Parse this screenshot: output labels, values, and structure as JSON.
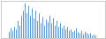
{
  "chart_data": {
    "type": "bar",
    "values": [
      5,
      8,
      6,
      9,
      7,
      14,
      10,
      18,
      22,
      28,
      20,
      26,
      18,
      24,
      16,
      22,
      14,
      20,
      12,
      17,
      10,
      15,
      13,
      18,
      12,
      16,
      10,
      14,
      9,
      12,
      8,
      10,
      7,
      9,
      6,
      7,
      5,
      6,
      8,
      5,
      4,
      6,
      3,
      5,
      4,
      3,
      4,
      2,
      3,
      2
    ],
    "color": "#5b9bd5",
    "ylim": [
      0,
      30
    ],
    "tick_labels": false
  }
}
